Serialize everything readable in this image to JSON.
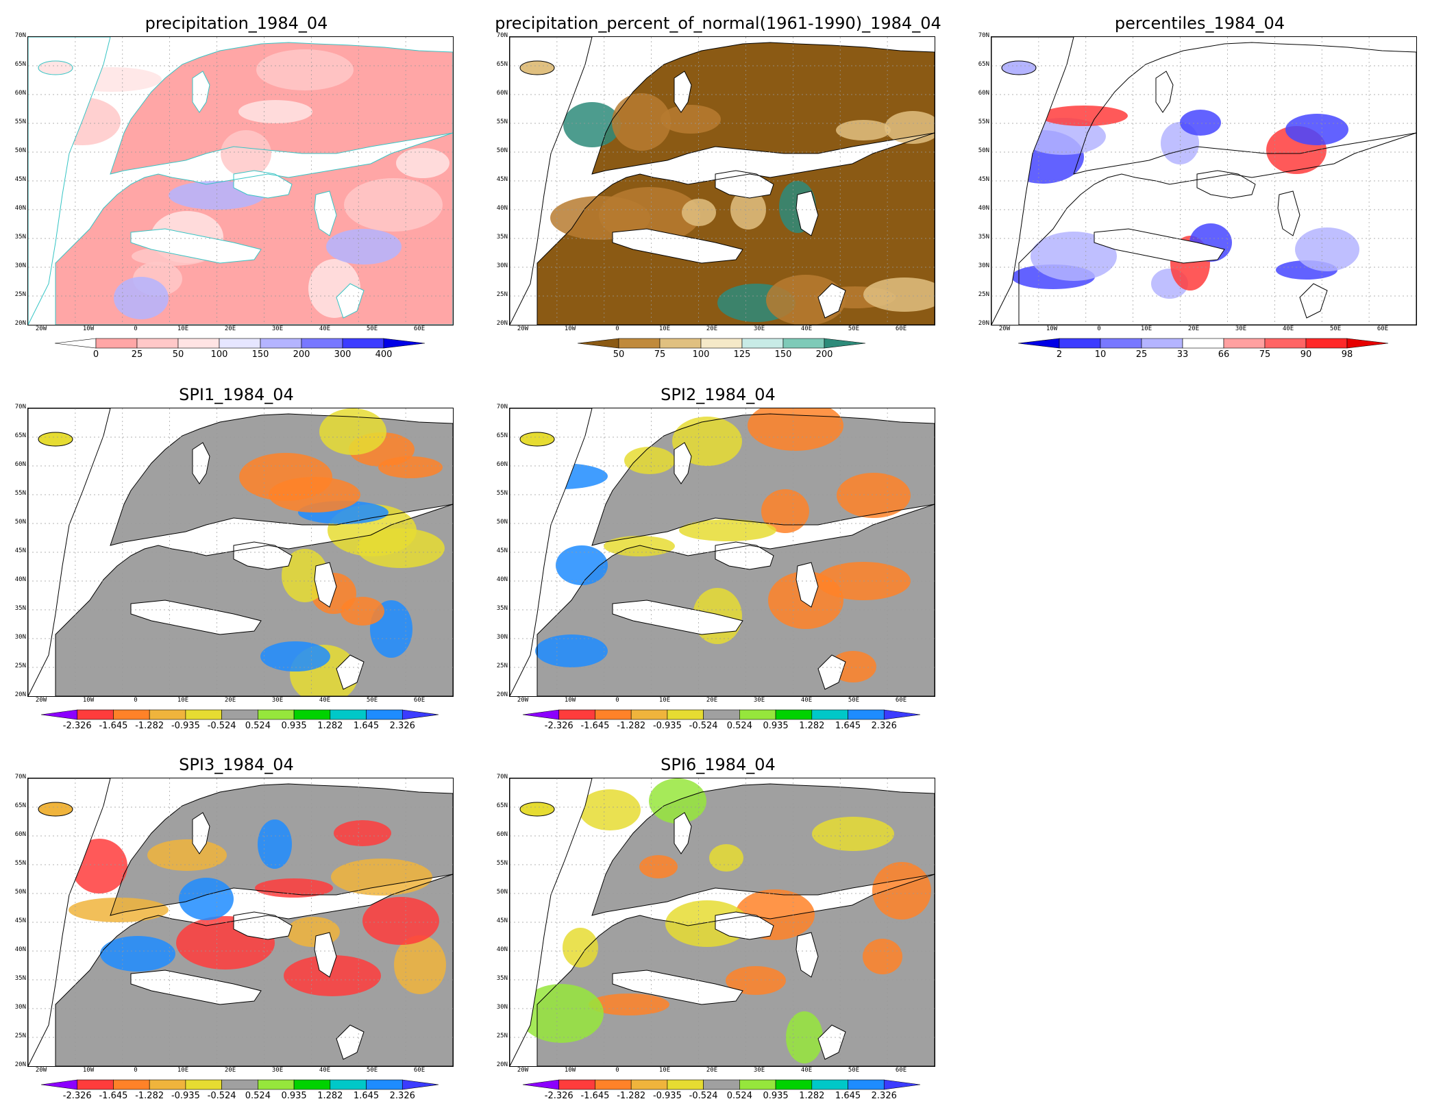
{
  "panels": [
    {
      "id": "precip",
      "title": "precipitation_1984_04",
      "x_ticks": [
        "20W",
        "10W",
        "0",
        "10E",
        "20E",
        "30E",
        "40E",
        "50E",
        "60E"
      ],
      "y_ticks": [
        "70N",
        "65N",
        "60N",
        "55N",
        "50N",
        "45N",
        "40N",
        "35N",
        "30N",
        "25N",
        "20N"
      ],
      "scale": {
        "labels": [
          "0",
          "25",
          "50",
          "100",
          "150",
          "200",
          "300",
          "400"
        ],
        "colors": [
          "#ffffff",
          "#ffa6a6",
          "#ffc8c8",
          "#ffe4e4",
          "#e6e6ff",
          "#b4b4ff",
          "#7878ff",
          "#3c3cff",
          "#0000e6"
        ]
      },
      "palette": {
        "base": "#ffa6a6",
        "mid": "#ffc8c8",
        "light": "#ffe4e4",
        "accent": "#b4b4ff",
        "coast": "#35c4c4"
      }
    },
    {
      "id": "pct",
      "title": "precipitation_percent_of_normal(1961-1990)_1984_04",
      "x_ticks": [
        "20W",
        "10W",
        "0",
        "10E",
        "20E",
        "30E",
        "40E",
        "50E",
        "60E"
      ],
      "y_ticks": [
        "70N",
        "65N",
        "60N",
        "55N",
        "50N",
        "45N",
        "40N",
        "35N",
        "30N",
        "25N",
        "20N"
      ],
      "scale": {
        "labels": [
          "50",
          "75",
          "100",
          "125",
          "150",
          "200"
        ],
        "colors": [
          "#8b5a14",
          "#c08a3c",
          "#e0c080",
          "#f5e9c8",
          "#c8ebe6",
          "#7ecab8",
          "#2e8b7a"
        ]
      },
      "palette": {
        "base": "#8b5a14",
        "mid": "#b77b30",
        "light": "#e0c080",
        "accent": "#2e8b7a",
        "coast": "#000000"
      }
    },
    {
      "id": "perc",
      "title": "percentiles_1984_04",
      "x_ticks": [
        "20W",
        "10W",
        "0",
        "10E",
        "20E",
        "30E",
        "40E",
        "50E",
        "60E"
      ],
      "y_ticks": [
        "70N",
        "65N",
        "60N",
        "55N",
        "50N",
        "45N",
        "40N",
        "35N",
        "30N",
        "25N",
        "20N"
      ],
      "scale": {
        "labels": [
          "2",
          "10",
          "25",
          "33",
          "66",
          "75",
          "90",
          "98"
        ],
        "colors": [
          "#0000e6",
          "#3c3cff",
          "#7878ff",
          "#b4b4ff",
          "#ffffff",
          "#ffa0a0",
          "#ff6464",
          "#ff2828",
          "#e60000"
        ]
      },
      "palette": {
        "base": "#ffffff",
        "mid": "#4646ff",
        "light": "#b4b4ff",
        "accent": "#ff3c3c",
        "coast": "#000000"
      }
    },
    {
      "id": "spi1",
      "title": "SPI1_1984_04",
      "x_ticks": [
        "20W",
        "10W",
        "0",
        "10E",
        "20E",
        "30E",
        "40E",
        "50E",
        "60E"
      ],
      "y_ticks": [
        "70N",
        "65N",
        "60N",
        "55N",
        "50N",
        "45N",
        "40N",
        "35N",
        "30N",
        "25N",
        "20N"
      ],
      "scale": {
        "labels": [
          "-2.326",
          "-1.645",
          "-1.282",
          "-0.935",
          "-0.524",
          "0.524",
          "0.935",
          "1.282",
          "1.645",
          "2.326"
        ],
        "colors": [
          "#8c00ff",
          "#ff3c3c",
          "#ff8228",
          "#f0b43c",
          "#e6dc32",
          "#a0a0a0",
          "#96e63c",
          "#00d200",
          "#00c8c8",
          "#1e8cff",
          "#3c3cff"
        ]
      },
      "palette": {
        "base": "#a0a0a0",
        "mid": "#ff8228",
        "light": "#e6dc32",
        "accent": "#1e8cff",
        "coast": "#000000"
      }
    },
    {
      "id": "spi2",
      "title": "SPI2_1984_04",
      "x_ticks": [
        "20W",
        "10W",
        "0",
        "10E",
        "20E",
        "30E",
        "40E",
        "50E",
        "60E"
      ],
      "y_ticks": [
        "70N",
        "65N",
        "60N",
        "55N",
        "50N",
        "45N",
        "40N",
        "35N",
        "30N",
        "25N",
        "20N"
      ],
      "scale": {
        "labels": [
          "-2.326",
          "-1.645",
          "-1.282",
          "-0.935",
          "-0.524",
          "0.524",
          "0.935",
          "1.282",
          "1.645",
          "2.326"
        ],
        "colors": [
          "#8c00ff",
          "#ff3c3c",
          "#ff8228",
          "#f0b43c",
          "#e6dc32",
          "#a0a0a0",
          "#96e63c",
          "#00d200",
          "#00c8c8",
          "#1e8cff",
          "#3c3cff"
        ]
      },
      "palette": {
        "base": "#a0a0a0",
        "mid": "#ff8228",
        "light": "#e6dc32",
        "accent": "#1e8cff",
        "coast": "#000000"
      }
    },
    {
      "id": "spi3",
      "title": "SPI3_1984_04",
      "x_ticks": [
        "20W",
        "10W",
        "0",
        "10E",
        "20E",
        "30E",
        "40E",
        "50E",
        "60E"
      ],
      "y_ticks": [
        "70N",
        "65N",
        "60N",
        "55N",
        "50N",
        "45N",
        "40N",
        "35N",
        "30N",
        "25N",
        "20N"
      ],
      "scale": {
        "labels": [
          "-2.326",
          "-1.645",
          "-1.282",
          "-0.935",
          "-0.524",
          "0.524",
          "0.935",
          "1.282",
          "1.645",
          "2.326"
        ],
        "colors": [
          "#8c00ff",
          "#ff3c3c",
          "#ff8228",
          "#f0b43c",
          "#e6dc32",
          "#a0a0a0",
          "#96e63c",
          "#00d200",
          "#00c8c8",
          "#1e8cff",
          "#3c3cff"
        ]
      },
      "palette": {
        "base": "#a0a0a0",
        "mid": "#ff3c3c",
        "light": "#f0b43c",
        "accent": "#1e8cff",
        "coast": "#000000"
      }
    },
    {
      "id": "spi6",
      "title": "SPI6_1984_04",
      "x_ticks": [
        "20W",
        "10W",
        "0",
        "10E",
        "20E",
        "30E",
        "40E",
        "50E",
        "60E"
      ],
      "y_ticks": [
        "70N",
        "65N",
        "60N",
        "55N",
        "50N",
        "45N",
        "40N",
        "35N",
        "30N",
        "25N",
        "20N"
      ],
      "scale": {
        "labels": [
          "-2.326",
          "-1.645",
          "-1.282",
          "-0.935",
          "-0.524",
          "0.524",
          "0.935",
          "1.282",
          "1.645",
          "2.326"
        ],
        "colors": [
          "#8c00ff",
          "#ff3c3c",
          "#ff8228",
          "#f0b43c",
          "#e6dc32",
          "#a0a0a0",
          "#96e63c",
          "#00d200",
          "#00c8c8",
          "#1e8cff",
          "#3c3cff"
        ]
      },
      "palette": {
        "base": "#a0a0a0",
        "mid": "#ff8228",
        "light": "#e6dc32",
        "accent": "#96e63c",
        "coast": "#000000"
      }
    }
  ]
}
